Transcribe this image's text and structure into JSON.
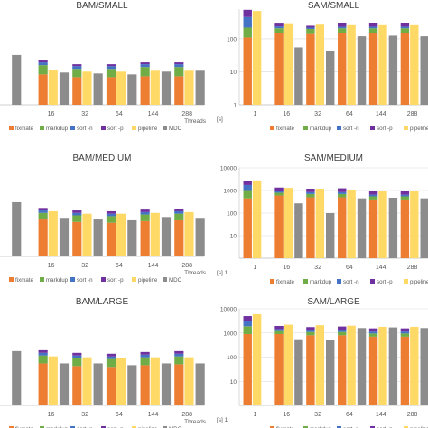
{
  "colors": {
    "fixmate": "#ed7d31",
    "markdup": "#70ad47",
    "sort_n": "#4472c4",
    "sort_p": "#7030a0",
    "pipeline": "#ffd966",
    "mdc": "#8c8c8c",
    "grid": "#d9d9d9",
    "axis": "#bfbfbf",
    "text": "#595959"
  },
  "legend_labels": [
    "fixmate",
    "markdup",
    "sort -n",
    "sort -p",
    "pipeline",
    "MDC"
  ],
  "chart_data": [
    {
      "type": "bar",
      "title": "BAM/SMALL",
      "scale": "linear",
      "categories": [
        "",
        "16",
        "32",
        "64",
        "144",
        "288"
      ],
      "xlabel": "Threads",
      "ylabel": "",
      "tick_labels": [],
      "ylim": [
        0,
        100
      ],
      "legend": "bottom",
      "series": [
        {
          "name": "fixmate",
          "values": [
            null,
            33,
            30,
            30,
            31,
            31
          ]
        },
        {
          "name": "markdup",
          "values": [
            null,
            10,
            9,
            9,
            10,
            10
          ]
        },
        {
          "name": "sort -n",
          "values": [
            null,
            3,
            3,
            3,
            3,
            3
          ]
        },
        {
          "name": "sort -p",
          "values": [
            null,
            2,
            2,
            2,
            2,
            2
          ]
        },
        {
          "name": "pipeline",
          "values": [
            null,
            38,
            36,
            36,
            37,
            37
          ]
        },
        {
          "name": "MDC",
          "values": [
            54,
            35,
            34,
            33,
            36,
            37
          ]
        }
      ]
    },
    {
      "type": "bar",
      "title": "SAM/SMALL",
      "scale": "log",
      "categories": [
        "1",
        "16",
        "32",
        "64",
        "144",
        "288"
      ],
      "xlabel": "",
      "ylabel": "[s]",
      "tick_labels": [
        "1",
        "10",
        "100"
      ],
      "ylim": [
        1,
        800
      ],
      "legend": "bottom",
      "series": [
        {
          "name": "fixmate",
          "values": [
            110,
            150,
            140,
            150,
            150,
            150
          ]
        },
        {
          "name": "markdup",
          "values": [
            110,
            60,
            60,
            60,
            60,
            60
          ]
        },
        {
          "name": "sort -n",
          "values": [
            240,
            30,
            20,
            25,
            25,
            25
          ]
        },
        {
          "name": "sort -p",
          "values": [
            300,
            50,
            30,
            60,
            60,
            60
          ]
        },
        {
          "name": "pipeline",
          "values": [
            700,
            280,
            270,
            260,
            260,
            260
          ]
        },
        {
          "name": "MDC",
          "values": [
            null,
            55,
            42,
            120,
            125,
            120
          ]
        }
      ]
    },
    {
      "type": "bar",
      "title": "BAM/MEDIUM",
      "scale": "linear",
      "categories": [
        "",
        "16",
        "32",
        "64",
        "144",
        "288"
      ],
      "xlabel": "Threads",
      "ylabel": "",
      "tick_labels": [],
      "ylim": [
        0,
        100
      ],
      "legend": "bottom",
      "series": [
        {
          "name": "fixmate",
          "values": [
            null,
            45,
            42,
            41,
            43,
            44
          ]
        },
        {
          "name": "markdup",
          "values": [
            null,
            8,
            8,
            8,
            8,
            8
          ]
        },
        {
          "name": "sort -n",
          "values": [
            null,
            3,
            3,
            3,
            3,
            3
          ]
        },
        {
          "name": "sort -p",
          "values": [
            null,
            3,
            3,
            3,
            3,
            3
          ]
        },
        {
          "name": "pipeline",
          "values": [
            null,
            55,
            52,
            52,
            53,
            54
          ]
        },
        {
          "name": "MDC",
          "values": [
            66,
            47,
            45,
            44,
            48,
            47
          ]
        }
      ]
    },
    {
      "type": "bar",
      "title": "SAM/MEDIUM",
      "scale": "log",
      "categories": [
        "1",
        "16",
        "32",
        "64",
        "144",
        "288"
      ],
      "xlabel": "",
      "ylabel": "[s] 1",
      "tick_labels": [
        "10",
        "100",
        "1000",
        "10000"
      ],
      "ylim": [
        1,
        10000
      ],
      "legend": "bottom",
      "series": [
        {
          "name": "fixmate",
          "values": [
            450,
            600,
            500,
            500,
            400,
            400
          ]
        },
        {
          "name": "markdup",
          "values": [
            600,
            200,
            200,
            200,
            150,
            150
          ]
        },
        {
          "name": "sort -n",
          "values": [
            700,
            150,
            150,
            150,
            100,
            100
          ]
        },
        {
          "name": "sort -p",
          "values": [
            900,
            400,
            350,
            400,
            300,
            300
          ]
        },
        {
          "name": "pipeline",
          "values": [
            2800,
            1300,
            1200,
            1100,
            1000,
            1000
          ]
        },
        {
          "name": "MDC",
          "values": [
            null,
            270,
            100,
            450,
            480,
            450
          ]
        }
      ]
    },
    {
      "type": "bar",
      "title": "BAM/LARGE",
      "scale": "linear",
      "categories": [
        "",
        "16",
        "32",
        "64",
        "144",
        "288"
      ],
      "xlabel": "Threads",
      "ylabel": "",
      "tick_labels": [],
      "ylim": [
        0,
        100
      ],
      "legend": "bottom",
      "series": [
        {
          "name": "fixmate",
          "values": [
            null,
            48,
            45,
            44,
            46,
            47
          ]
        },
        {
          "name": "markdup",
          "values": [
            null,
            9,
            9,
            9,
            9,
            9
          ]
        },
        {
          "name": "sort -n",
          "values": [
            null,
            3,
            3,
            3,
            3,
            3
          ]
        },
        {
          "name": "sort -p",
          "values": [
            null,
            3,
            3,
            3,
            3,
            3
          ]
        },
        {
          "name": "pipeline",
          "values": [
            null,
            56,
            55,
            54,
            55,
            55
          ]
        },
        {
          "name": "MDC",
          "values": [
            62,
            48,
            48,
            46,
            48,
            48
          ]
        }
      ]
    },
    {
      "type": "bar",
      "title": "SAM/LARGE",
      "scale": "log",
      "categories": [
        "1",
        "16",
        "32",
        "64",
        "144",
        "288"
      ],
      "xlabel": "",
      "ylabel": "[s] 1",
      "tick_labels": [
        "10",
        "100",
        "1000",
        "10000"
      ],
      "ylim": [
        1,
        10000
      ],
      "legend": "bottom",
      "series": [
        {
          "name": "fixmate",
          "values": [
            900,
            900,
            800,
            800,
            700,
            700
          ]
        },
        {
          "name": "markdup",
          "values": [
            1000,
            300,
            300,
            300,
            250,
            250
          ]
        },
        {
          "name": "sort -n",
          "values": [
            1100,
            250,
            250,
            250,
            200,
            200
          ]
        },
        {
          "name": "sort -p",
          "values": [
            2000,
            500,
            400,
            500,
            400,
            400
          ]
        },
        {
          "name": "pipeline",
          "values": [
            6000,
            2200,
            2100,
            2000,
            1800,
            1800
          ]
        },
        {
          "name": "MDC",
          "values": [
            null,
            550,
            500,
            1600,
            1700,
            1600
          ]
        }
      ]
    }
  ]
}
